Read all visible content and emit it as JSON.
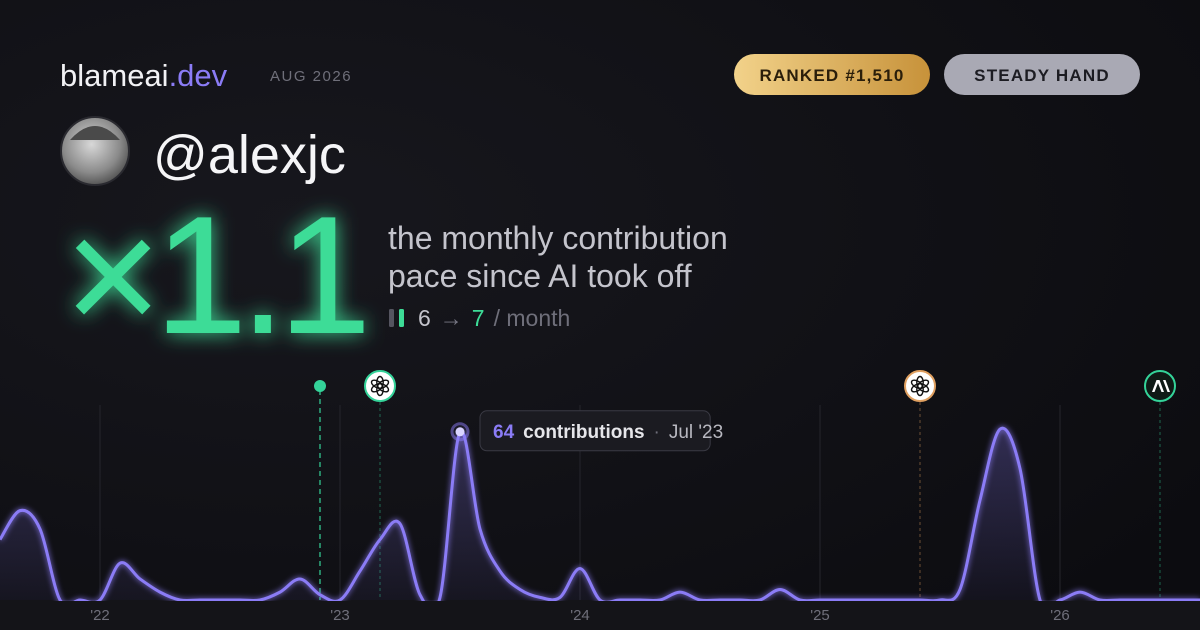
{
  "header": {
    "brand": "blameai",
    "brand_tld": ".dev",
    "date": "AUG 2026",
    "badges": [
      "RANKED #1,510",
      "STEADY HAND"
    ],
    "username": "@alexjc"
  },
  "hero": {
    "multiplier": "×1.1",
    "caption_line1": "the monthly contribution",
    "caption_line2": "pace since AI took off",
    "before": 6,
    "arrow": "→",
    "after": 7,
    "unit": "/ month"
  },
  "chart_data": {
    "type": "area",
    "color": "#8b7cf6",
    "x": [
      "2021-08",
      "2021-09",
      "2021-10",
      "2021-11",
      "2021-12",
      "2022-01",
      "2022-02",
      "2022-03",
      "2022-04",
      "2022-05",
      "2022-06",
      "2022-07",
      "2022-08",
      "2022-09",
      "2022-10",
      "2022-11",
      "2022-12",
      "2023-01",
      "2023-02",
      "2023-03",
      "2023-04",
      "2023-05",
      "2023-06",
      "2023-07",
      "2023-08",
      "2023-09",
      "2023-10",
      "2023-11",
      "2023-12",
      "2024-01",
      "2024-02",
      "2024-03",
      "2024-04",
      "2024-05",
      "2024-06",
      "2024-07",
      "2024-08",
      "2024-09",
      "2024-10",
      "2024-11",
      "2024-12",
      "2025-01",
      "2025-02",
      "2025-03",
      "2025-04",
      "2025-05",
      "2025-06",
      "2025-07",
      "2025-08",
      "2025-09",
      "2025-10",
      "2025-11",
      "2025-12",
      "2026-01",
      "2026-02",
      "2026-03",
      "2026-04",
      "2026-05",
      "2026-06",
      "2026-07",
      "2026-08"
    ],
    "values": [
      23,
      34,
      27,
      0,
      0,
      0,
      14,
      8,
      3,
      0,
      0,
      0,
      0,
      0,
      3,
      8,
      2,
      0,
      11,
      23,
      29,
      2,
      1,
      64,
      27,
      11,
      4,
      1,
      1,
      12,
      0,
      0,
      0,
      0,
      3,
      0,
      0,
      0,
      0,
      4,
      0,
      0,
      0,
      0,
      0,
      0,
      0,
      0,
      4,
      38,
      65,
      50,
      0,
      0,
      3,
      0,
      0,
      0,
      0,
      0,
      0
    ],
    "xlim": [
      "2021-08",
      "2026-08"
    ],
    "ylim": [
      0,
      70
    ],
    "xticks": [
      {
        "value": "2022-01",
        "label": "'22"
      },
      {
        "value": "2023-01",
        "label": "'23"
      },
      {
        "value": "2024-01",
        "label": "'24"
      },
      {
        "value": "2025-01",
        "label": "'25"
      },
      {
        "value": "2026-01",
        "label": "'26"
      }
    ],
    "grid": true,
    "tooltip": {
      "index": 23,
      "label": "contributions",
      "separator": "·",
      "date": "Jul '23"
    },
    "events": [
      {
        "x": "2022-12",
        "icon": "dot",
        "color": "#34d399"
      },
      {
        "x": "2023-03",
        "icon": "openai",
        "color": "#34d399"
      },
      {
        "x": "2025-06",
        "icon": "openai",
        "color": "#e0a060"
      },
      {
        "x": "2026-06",
        "icon": "anthropic",
        "color": "#34d399"
      }
    ]
  }
}
